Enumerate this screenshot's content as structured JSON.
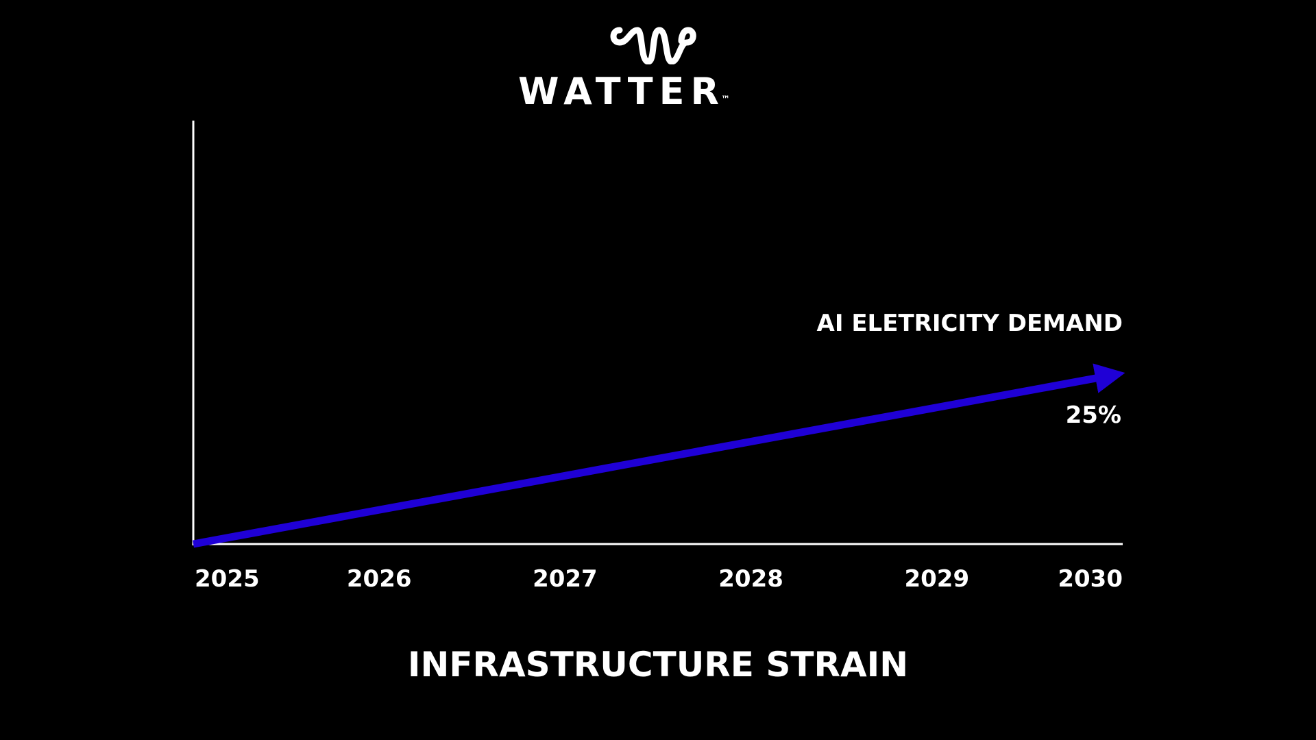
{
  "brand": {
    "name": "WATTER",
    "trademark": "™",
    "logo_icon": "wave-logo-icon"
  },
  "colors": {
    "background": "#000000",
    "foreground": "#ffffff",
    "series": "#1f00d6"
  },
  "chart_data": {
    "type": "line",
    "title": "INFRASTRUCTURE STRAIN",
    "xlabel": "",
    "ylabel": "",
    "categories": [
      "2025",
      "2026",
      "2027",
      "2028",
      "2029",
      "2030"
    ],
    "x": [
      2025,
      2030
    ],
    "series": [
      {
        "name": "AI ELETRICITY DEMAND",
        "values": [
          0,
          25
        ],
        "end_label": "25%",
        "arrow": true
      }
    ],
    "ylim": [
      0,
      62
    ],
    "grid": false,
    "legend": "none"
  }
}
